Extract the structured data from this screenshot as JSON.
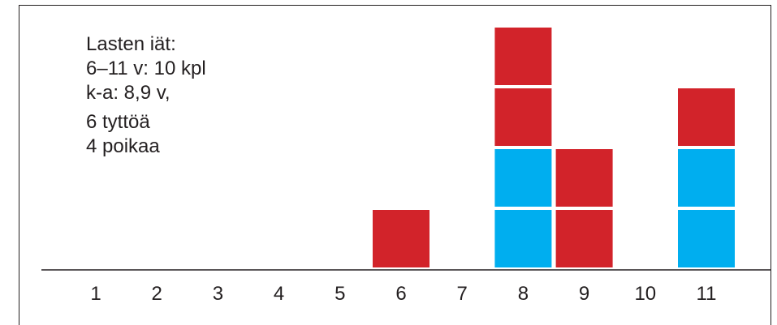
{
  "notes": {
    "line1": "Lasten iät:",
    "line2": "6–11 v: 10 kpl",
    "line3": "k-a: 8,9 v,",
    "line4": "6 tyttöä",
    "line5": "4 poikaa"
  },
  "colors": {
    "girl": "#d2232a",
    "boy": "#00aeef",
    "axis": "#231f20",
    "frame": "#231f20"
  },
  "chart_data": {
    "type": "bar",
    "stacked": true,
    "categories": [
      "1",
      "2",
      "3",
      "4",
      "5",
      "6",
      "7",
      "8",
      "9",
      "10",
      "11"
    ],
    "series": [
      {
        "color": "#00aeef",
        "values": [
          0,
          0,
          0,
          0,
          0,
          0,
          0,
          2,
          0,
          0,
          2
        ]
      },
      {
        "color": "#d2232a",
        "values": [
          0,
          0,
          0,
          0,
          0,
          1,
          0,
          2,
          2,
          0,
          1
        ]
      }
    ],
    "ylim": [
      0,
      4
    ],
    "grid": false
  }
}
